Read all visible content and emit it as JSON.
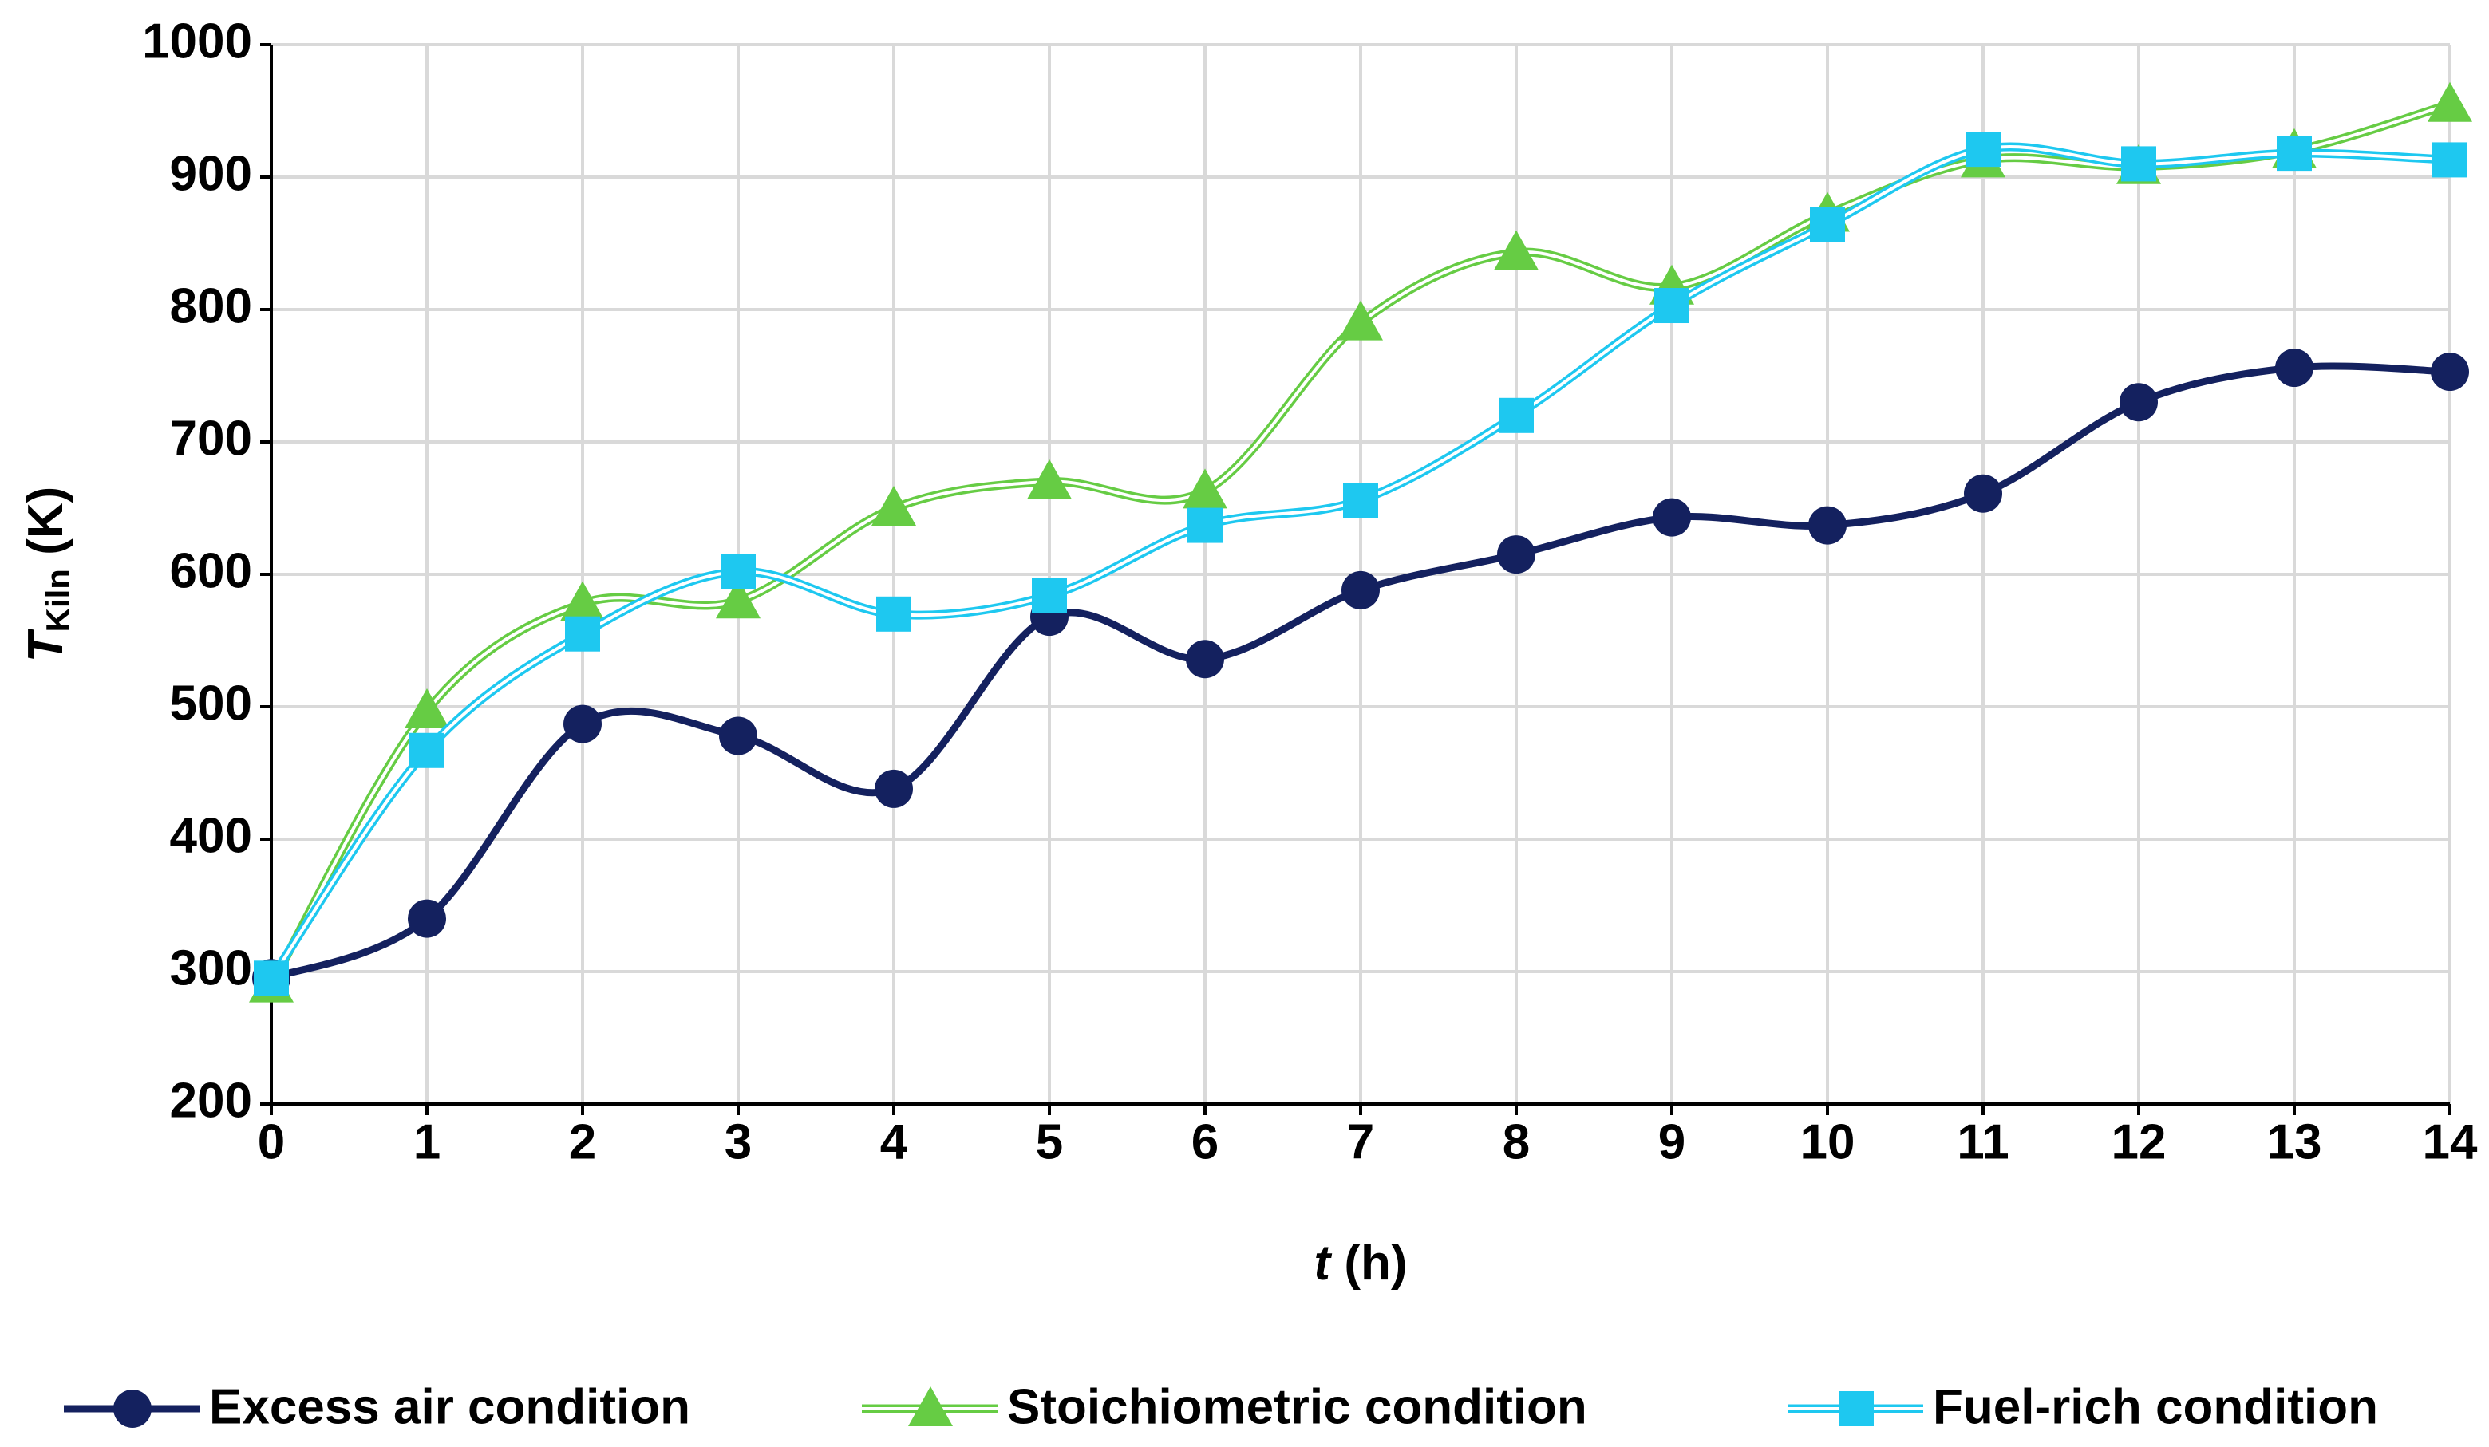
{
  "chart_data": {
    "type": "line",
    "x_label": {
      "symbol": "t",
      "unit": "(h)"
    },
    "y_label": {
      "symbol": "T",
      "subscript": "Kiln",
      "unit": "(K)"
    },
    "x": [
      0,
      1,
      2,
      3,
      4,
      5,
      6,
      7,
      8,
      9,
      10,
      11,
      12,
      13,
      14
    ],
    "series": [
      {
        "name": "Excess air condition",
        "color": "#14215f",
        "marker": "circle",
        "style": "solid",
        "values": [
          295,
          340,
          487,
          478,
          438,
          568,
          536,
          588,
          615,
          643,
          637,
          661,
          730,
          756,
          753
        ]
      },
      {
        "name": "Stoichiometric condition",
        "color": "#66cc44",
        "marker": "triangle",
        "style": "double",
        "values": [
          290,
          497,
          578,
          580,
          650,
          670,
          663,
          790,
          843,
          817,
          872,
          913,
          908,
          920,
          955
        ]
      },
      {
        "name": "Fuel-rich condition",
        "color": "#1ec8f0",
        "marker": "square",
        "style": "double",
        "values": [
          295,
          467,
          555,
          602,
          570,
          584,
          637,
          656,
          720,
          803,
          864,
          921,
          910,
          918,
          913
        ]
      }
    ],
    "xlim": [
      0,
      14
    ],
    "xticks": [
      0,
      1,
      2,
      3,
      4,
      5,
      6,
      7,
      8,
      9,
      10,
      11,
      12,
      13,
      14
    ],
    "ylim": [
      200,
      1000
    ],
    "yticks": [
      200,
      300,
      400,
      500,
      600,
      700,
      800,
      900,
      1000
    ],
    "grid": true,
    "smooth": true,
    "legend": "bottom"
  }
}
